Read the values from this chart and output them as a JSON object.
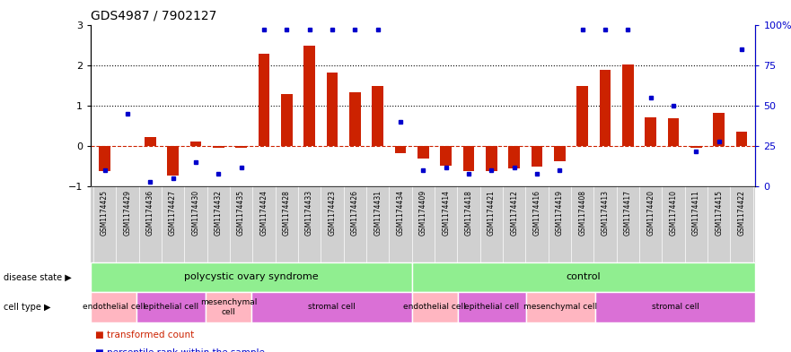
{
  "title": "GDS4987 / 7902127",
  "samples": [
    "GSM1174425",
    "GSM1174429",
    "GSM1174436",
    "GSM1174427",
    "GSM1174430",
    "GSM1174432",
    "GSM1174435",
    "GSM1174424",
    "GSM1174428",
    "GSM1174433",
    "GSM1174423",
    "GSM1174426",
    "GSM1174431",
    "GSM1174434",
    "GSM1174409",
    "GSM1174414",
    "GSM1174418",
    "GSM1174421",
    "GSM1174412",
    "GSM1174416",
    "GSM1174419",
    "GSM1174408",
    "GSM1174413",
    "GSM1174417",
    "GSM1174420",
    "GSM1174410",
    "GSM1174411",
    "GSM1174415",
    "GSM1174422"
  ],
  "transformed_count": [
    -0.62,
    0.0,
    0.22,
    -0.72,
    0.12,
    -0.05,
    -0.05,
    2.28,
    1.28,
    2.48,
    1.82,
    1.32,
    1.48,
    -0.18,
    -0.3,
    -0.48,
    -0.62,
    -0.62,
    -0.55,
    -0.5,
    -0.38,
    1.48,
    1.88,
    2.02,
    0.72,
    0.68,
    -0.05,
    0.82,
    0.35
  ],
  "percentile_rank": [
    10,
    45,
    3,
    5,
    15,
    8,
    12,
    97,
    97,
    97,
    97,
    97,
    97,
    40,
    10,
    12,
    8,
    10,
    12,
    8,
    10,
    97,
    97,
    97,
    55,
    50,
    22,
    28,
    85
  ],
  "disease_state_groups": [
    {
      "label": "polycystic ovary syndrome",
      "start": 0,
      "end": 14,
      "color": "#90ee90"
    },
    {
      "label": "control",
      "start": 14,
      "end": 29,
      "color": "#90ee90"
    }
  ],
  "cell_type_groups": [
    {
      "label": "endothelial cell",
      "start": 0,
      "end": 2,
      "color": "#ffb6c1"
    },
    {
      "label": "epithelial cell",
      "start": 2,
      "end": 5,
      "color": "#da70d6"
    },
    {
      "label": "mesenchymal\ncell",
      "start": 5,
      "end": 7,
      "color": "#ffb6c1"
    },
    {
      "label": "stromal cell",
      "start": 7,
      "end": 14,
      "color": "#da70d6"
    },
    {
      "label": "endothelial cell",
      "start": 14,
      "end": 16,
      "color": "#ffb6c1"
    },
    {
      "label": "epithelial cell",
      "start": 16,
      "end": 19,
      "color": "#da70d6"
    },
    {
      "label": "mesenchymal cell",
      "start": 19,
      "end": 22,
      "color": "#ffb6c1"
    },
    {
      "label": "stromal cell",
      "start": 22,
      "end": 29,
      "color": "#da70d6"
    }
  ],
  "bar_color": "#cc2200",
  "dot_color": "#0000cc",
  "ylim": [
    -1,
    3
  ],
  "y2lim": [
    0,
    100
  ],
  "y_ticks": [
    -1,
    0,
    1,
    2,
    3
  ],
  "y2_ticks": [
    0,
    25,
    50,
    75,
    100
  ],
  "dotted_lines": [
    1,
    2
  ],
  "zero_dashed_color": "#cc2200"
}
